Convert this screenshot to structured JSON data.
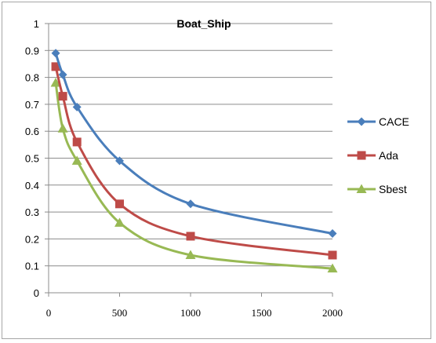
{
  "chart_data": {
    "type": "line",
    "title": "Boat_Ship",
    "xlabel": "",
    "ylabel": "",
    "x": [
      50,
      100,
      200,
      500,
      1000,
      2000
    ],
    "xlim": [
      0,
      2000
    ],
    "ylim": [
      0,
      1
    ],
    "xticks": [
      "0",
      "500",
      "1000",
      "1500",
      "2000"
    ],
    "xtick_values": [
      0,
      500,
      1000,
      1500,
      2000
    ],
    "yticks": [
      "0",
      "0.1",
      "0.2",
      "0.3",
      "0.4",
      "0.5",
      "0.6",
      "0.7",
      "0.8",
      "0.9",
      "1"
    ],
    "ytick_values": [
      0,
      0.1,
      0.2,
      0.3,
      0.4,
      0.5,
      0.6,
      0.7,
      0.8,
      0.9,
      1
    ],
    "grid": "horizontal",
    "legend_position": "right",
    "series": [
      {
        "name": "CACE",
        "color": "#4a7ebb",
        "marker": "diamond",
        "values": [
          0.89,
          0.81,
          0.69,
          0.49,
          0.33,
          0.22
        ]
      },
      {
        "name": "Ada",
        "color": "#be4b48",
        "marker": "square",
        "values": [
          0.84,
          0.73,
          0.56,
          0.33,
          0.21,
          0.14
        ]
      },
      {
        "name": "Sbest",
        "color": "#98b954",
        "marker": "triangle",
        "values": [
          0.78,
          0.61,
          0.49,
          0.26,
          0.14,
          0.09
        ]
      }
    ]
  }
}
